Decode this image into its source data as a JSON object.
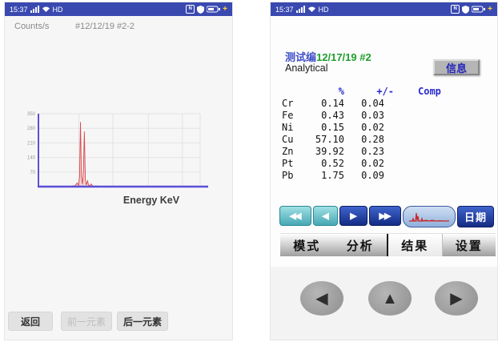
{
  "colors": {
    "status_bar_bg": "#3a49b0",
    "spectrum_red": "#d84848",
    "chart_axis_purple": "#5b4fd6",
    "nav_teal": "#47a8b4",
    "nav_blue": "#142c84",
    "title_label_blue": "#4352c8",
    "title_value_green": "#1f9e2c",
    "table_header_blue": "#2a2ad0"
  },
  "status_bar": {
    "time": "15:37",
    "network_label": "HD"
  },
  "left_screen": {
    "sample_id": "#12/12/19 #2-2",
    "buttons": {
      "back": "返回",
      "prev_element": "前一元素",
      "next_element": "后一元素"
    }
  },
  "right_screen": {
    "test_label": "测试编",
    "test_value": "12/17/19 #2",
    "mode_label": "Analytical",
    "info_button": "信息",
    "table": {
      "headers": {
        "percent": "%",
        "error": "+/-",
        "comp": "Comp"
      },
      "rows": [
        {
          "element": "Cr",
          "percent": "0.14",
          "error": "0.04"
        },
        {
          "element": "Fe",
          "percent": "0.43",
          "error": "0.03"
        },
        {
          "element": "Ni",
          "percent": "0.15",
          "error": "0.02"
        },
        {
          "element": "Cu",
          "percent": "57.10",
          "error": "0.28"
        },
        {
          "element": "Zn",
          "percent": "39.92",
          "error": "0.23"
        },
        {
          "element": "Pt",
          "percent": "0.52",
          "error": "0.02"
        },
        {
          "element": "Pb",
          "percent": "1.75",
          "error": "0.09"
        }
      ]
    },
    "nav": {
      "fast_back": "◀◀",
      "back": "◀",
      "forward": "▶",
      "fast_forward": "▶▶",
      "date_button": "日期"
    },
    "tabs": [
      {
        "key": "mode",
        "label": "模式",
        "selected": false
      },
      {
        "key": "analysis",
        "label": "分析",
        "selected": false
      },
      {
        "key": "results",
        "label": "结果",
        "selected": true
      },
      {
        "key": "settings",
        "label": "设置",
        "selected": false
      }
    ],
    "dpad": {
      "left": "◀",
      "up": "▲",
      "right": "▶"
    }
  },
  "chart_data": {
    "type": "area",
    "title": "",
    "xlabel": "Energy KeV",
    "ylabel": "Counts/s",
    "ylim": [
      0,
      350
    ],
    "yticks": [
      70,
      140,
      210,
      280,
      350
    ],
    "x_gridlines_percent": [
      25,
      46,
      68,
      89,
      100
    ],
    "grid": true,
    "legend": false,
    "series": [
      {
        "name": "spectrum",
        "points": [
          [
            0,
            0
          ],
          [
            16,
            1
          ],
          [
            18,
            2
          ],
          [
            20,
            1
          ],
          [
            21,
            4
          ],
          [
            22,
            2
          ],
          [
            23,
            8
          ],
          [
            24,
            18
          ],
          [
            24.8,
            6
          ],
          [
            25.4,
            45
          ],
          [
            26,
            310
          ],
          [
            26.6,
            50
          ],
          [
            27.2,
            12
          ],
          [
            27.8,
            70
          ],
          [
            28.4,
            265
          ],
          [
            29,
            35
          ],
          [
            29.6,
            8
          ],
          [
            30.4,
            28
          ],
          [
            31,
            6
          ],
          [
            31.8,
            4
          ],
          [
            32.6,
            13
          ],
          [
            33.4,
            3
          ],
          [
            34.5,
            2
          ],
          [
            36,
            3
          ],
          [
            38,
            1
          ],
          [
            41,
            2
          ],
          [
            44,
            1
          ],
          [
            48,
            2
          ],
          [
            53,
            1
          ],
          [
            58,
            2
          ],
          [
            64,
            1
          ],
          [
            72,
            1
          ],
          [
            82,
            1
          ],
          [
            92,
            0
          ],
          [
            100,
            0
          ]
        ]
      }
    ]
  }
}
